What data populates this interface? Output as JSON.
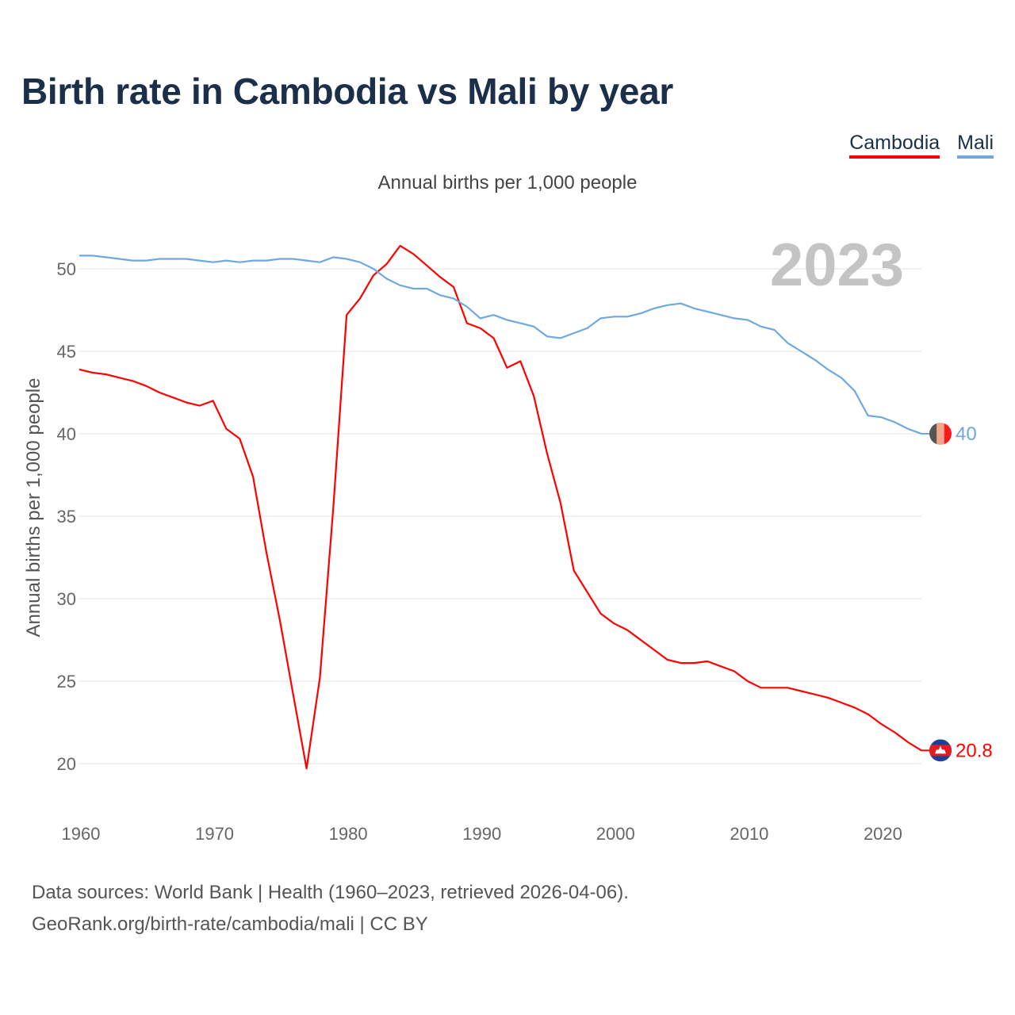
{
  "title": "Birth rate in Cambodia vs Mali by year",
  "subtitle": "Annual births per 1,000 people",
  "legend": [
    {
      "label": "Cambodia",
      "color": "#ff0000"
    },
    {
      "label": "Mali",
      "color": "#6fa8e0"
    }
  ],
  "year_label": "2023",
  "footer": {
    "line1": "Data sources: World Bank | Health (1960–2023, retrieved 2026-04-06).",
    "line2": "GeoRank.org/birth-rate/cambodia/mali | CC BY"
  },
  "chart_data": {
    "type": "line",
    "title": "Birth rate in Cambodia vs Mali by year",
    "xlabel": "",
    "ylabel": "Annual births per 1,000 people",
    "xlim": [
      1960,
      2023
    ],
    "ylim": [
      18,
      52
    ],
    "x_ticks": [
      1960,
      1970,
      1980,
      1990,
      2000,
      2010,
      2020
    ],
    "y_ticks": [
      20,
      25,
      30,
      35,
      40,
      45,
      50
    ],
    "grid": true,
    "legend_position": "top-right",
    "x": [
      1960,
      1961,
      1962,
      1963,
      1964,
      1965,
      1966,
      1967,
      1968,
      1969,
      1970,
      1971,
      1972,
      1973,
      1974,
      1975,
      1976,
      1977,
      1978,
      1979,
      1980,
      1981,
      1982,
      1983,
      1984,
      1985,
      1986,
      1987,
      1988,
      1989,
      1990,
      1991,
      1992,
      1993,
      1994,
      1995,
      1996,
      1997,
      1998,
      1999,
      2000,
      2001,
      2002,
      2003,
      2004,
      2005,
      2006,
      2007,
      2008,
      2009,
      2010,
      2011,
      2012,
      2013,
      2014,
      2015,
      2016,
      2017,
      2018,
      2019,
      2020,
      2021,
      2022,
      2023
    ],
    "series": [
      {
        "name": "Cambodia",
        "color": "#ff0000",
        "end_label": "20.8",
        "values": [
          43.9,
          43.7,
          43.6,
          43.4,
          43.2,
          42.9,
          42.5,
          42.2,
          41.9,
          41.7,
          42.0,
          40.3,
          39.7,
          37.4,
          32.8,
          28.7,
          24.2,
          19.7,
          25.2,
          35.5,
          47.2,
          48.2,
          49.6,
          50.3,
          51.4,
          50.9,
          50.2,
          49.5,
          48.9,
          46.7,
          46.4,
          45.8,
          44.0,
          44.4,
          42.3,
          38.8,
          35.8,
          31.7,
          30.4,
          29.1,
          28.5,
          28.1,
          27.5,
          26.9,
          26.3,
          26.1,
          26.1,
          26.2,
          25.9,
          25.6,
          25.0,
          24.6,
          24.6,
          24.6,
          24.4,
          24.2,
          24.0,
          23.7,
          23.4,
          23.0,
          22.4,
          21.9,
          21.3,
          20.8
        ]
      },
      {
        "name": "Mali",
        "color": "#6fa8e0",
        "end_label": "40",
        "values": [
          50.8,
          50.8,
          50.7,
          50.6,
          50.5,
          50.5,
          50.6,
          50.6,
          50.6,
          50.5,
          50.4,
          50.5,
          50.4,
          50.5,
          50.5,
          50.6,
          50.6,
          50.5,
          50.4,
          50.7,
          50.6,
          50.4,
          50.0,
          49.4,
          49.0,
          48.8,
          48.8,
          48.4,
          48.2,
          47.7,
          47.0,
          47.2,
          46.9,
          46.7,
          46.5,
          45.9,
          45.8,
          46.1,
          46.4,
          47.0,
          47.1,
          47.1,
          47.3,
          47.6,
          47.8,
          47.9,
          47.6,
          47.4,
          47.2,
          47.0,
          46.9,
          46.5,
          46.3,
          45.5,
          45.0,
          44.5,
          43.9,
          43.4,
          42.6,
          41.1,
          41.0,
          40.7,
          40.3,
          40.0
        ]
      }
    ]
  }
}
